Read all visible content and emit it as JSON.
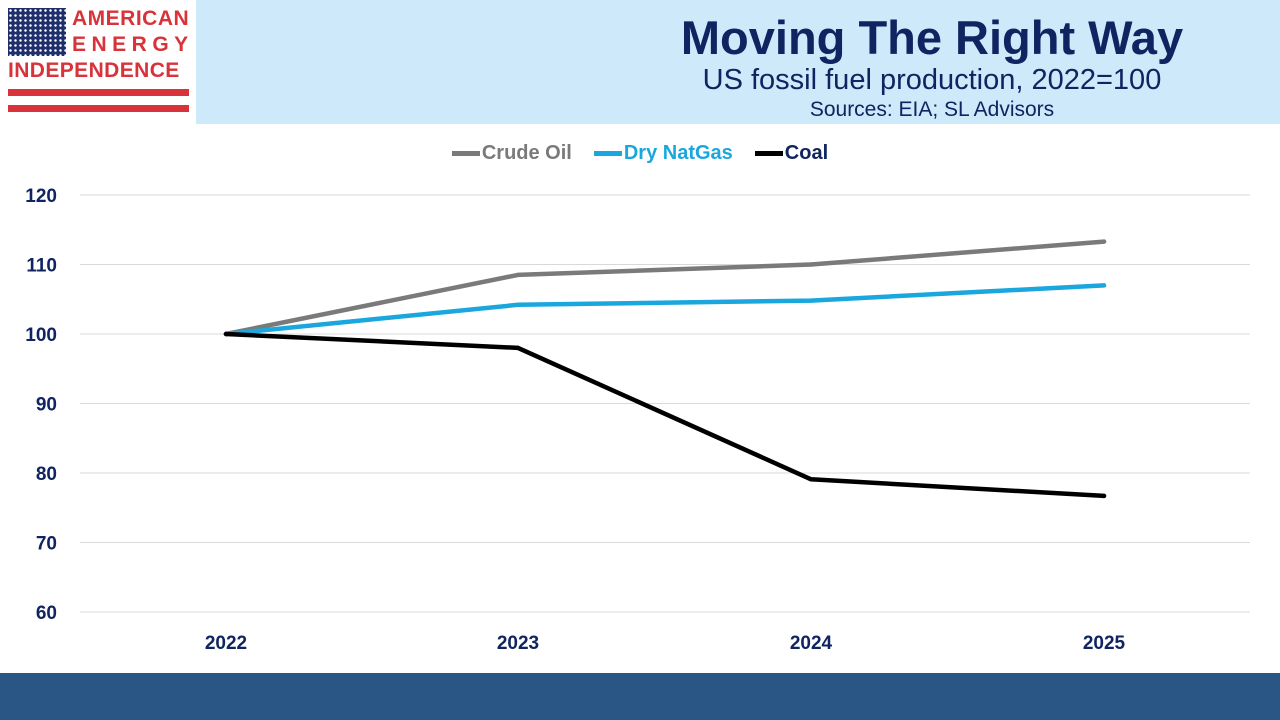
{
  "logo": {
    "line1": "AMERICAN",
    "line2": "ENERGY",
    "line3": "INDEPENDENCE",
    "colors": {
      "red": "#d8333a",
      "navy": "#1f2f6b"
    }
  },
  "header": {
    "background": "#cde9fa"
  },
  "footer": {
    "background": "#2a5686"
  },
  "chart_data": {
    "type": "line",
    "title": "Moving The Right Way",
    "subtitle": "US fossil fuel production, 2022=100",
    "sources": "Sources: EIA; SL Advisors",
    "categories": [
      "2022",
      "2023",
      "2024",
      "2025"
    ],
    "series": [
      {
        "name": "Crude Oil",
        "color": "#7a7a7a",
        "values": [
          100,
          108.5,
          110,
          113.3
        ]
      },
      {
        "name": "Dry NatGas",
        "color": "#1aa7dd",
        "values": [
          100,
          104.2,
          104.8,
          107
        ]
      },
      {
        "name": "Coal",
        "color": "#000000",
        "values": [
          100,
          98,
          79.1,
          76.7
        ]
      }
    ],
    "ylim": [
      60,
      120
    ],
    "yticks": [
      "120",
      "110",
      "100",
      "90",
      "80",
      "70",
      "60"
    ],
    "xlabel": "",
    "ylabel": "",
    "grid": true,
    "legend": "top"
  }
}
